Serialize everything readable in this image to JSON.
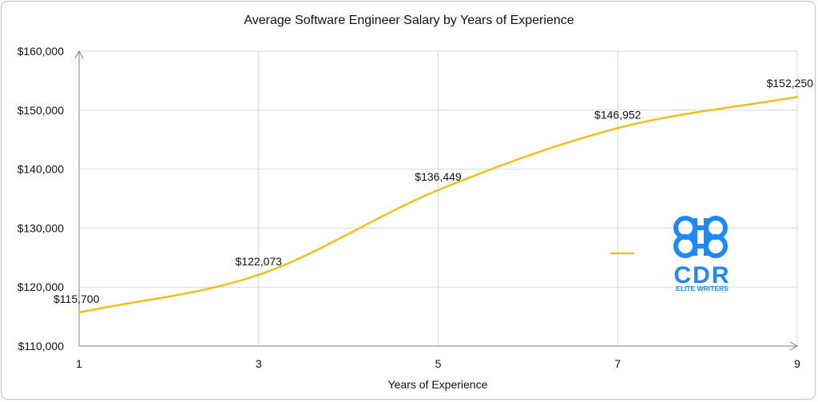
{
  "chart_data": {
    "type": "line",
    "title": "Average Software Engineer Salary by Years of Experience",
    "xlabel": "Years of Experience",
    "ylabel": "",
    "x": [
      1,
      3,
      5,
      7,
      9
    ],
    "x_ticks": [
      "1",
      "3",
      "5",
      "7",
      "9"
    ],
    "xlim": [
      1,
      9
    ],
    "ylim": [
      110000,
      160000
    ],
    "y_ticks": [
      110000,
      120000,
      130000,
      140000,
      150000,
      160000
    ],
    "y_tick_labels": [
      "$110,000",
      "$120,000",
      "$130,000",
      "$140,000",
      "$150,000",
      "$160,000"
    ],
    "series": [
      {
        "values": [
          115700,
          122073,
          136449,
          146952,
          152250
        ],
        "labels": [
          "$115,700",
          "$122,073",
          "$136,449",
          "$146,952",
          "$152,250"
        ],
        "color": "#F5BD12"
      }
    ],
    "grid": true,
    "legend": "right",
    "smooth": true
  },
  "logo": {
    "name": "cdr-elite-writers-logo",
    "mark": "CDR",
    "tagline": "ELITE WRITERS",
    "color": "#1E88FF"
  }
}
